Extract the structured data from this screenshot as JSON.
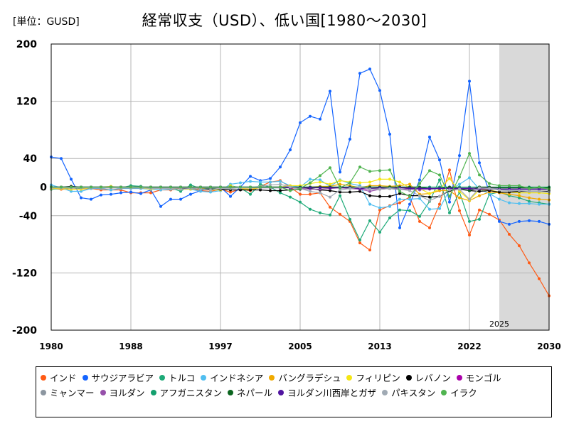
{
  "unit_label": "[単位：GUSD]",
  "title": "経常収支（USD）、低い国[1980～2030]",
  "forecast_label": "2025",
  "chart_data": {
    "type": "line",
    "ylim": [
      -200,
      200
    ],
    "yticks": [
      200,
      120,
      40,
      0,
      -40,
      -120,
      -200
    ],
    "xlim": [
      1980,
      2030
    ],
    "xticks": [
      1980,
      1988,
      1997,
      2005,
      2013,
      2022,
      2030
    ],
    "forecast_start": 2025,
    "grid": true,
    "legend_position": "bottom",
    "x": [
      1980,
      1981,
      1982,
      1983,
      1984,
      1985,
      1986,
      1987,
      1988,
      1989,
      1990,
      1991,
      1992,
      1993,
      1994,
      1995,
      1996,
      1997,
      1998,
      1999,
      2000,
      2001,
      2002,
      2003,
      2004,
      2005,
      2006,
      2007,
      2008,
      2009,
      2010,
      2011,
      2012,
      2013,
      2014,
      2015,
      2016,
      2017,
      2018,
      2019,
      2020,
      2021,
      2022,
      2023,
      2024,
      2025,
      2026,
      2027,
      2028,
      2029,
      2030
    ],
    "series": [
      {
        "name": "インド",
        "color": "#ff5a14",
        "values": [
          -2,
          -3,
          -3,
          -3,
          -2,
          -4,
          -4,
          -4,
          -8,
          -8,
          -8,
          -4,
          -4,
          -2,
          -2,
          -5,
          -6,
          -3,
          -7,
          -3,
          -5,
          1,
          7,
          9,
          0,
          -10,
          -10,
          -8,
          -28,
          -38,
          -48,
          -78,
          -88,
          -32,
          -26,
          -22,
          -14,
          -48,
          -57,
          -24,
          24,
          -33,
          -67,
          -32,
          -38,
          -46,
          -66,
          -82,
          -106,
          -128,
          -152
        ]
      },
      {
        "name": "サウジアラビア",
        "color": "#1464ff",
        "values": [
          42,
          40,
          11,
          -15,
          -17,
          -11,
          -10,
          -8,
          -7,
          -9,
          -4,
          -27,
          -17,
          -17,
          -10,
          -5,
          0,
          0,
          -13,
          0,
          15,
          9,
          12,
          28,
          52,
          90,
          99,
          95,
          134,
          21,
          67,
          159,
          165,
          135,
          74,
          -57,
          -24,
          10,
          70,
          38,
          -21,
          44,
          148,
          34,
          -7,
          -48,
          -52,
          -48,
          -47,
          -48,
          -52
        ]
      },
      {
        "name": "トルコ",
        "color": "#1eaa78",
        "values": [
          -3,
          -2,
          -1,
          -2,
          -2,
          -1,
          -1,
          -1,
          2,
          1,
          -2,
          0,
          -1,
          -6,
          3,
          -2,
          -2,
          -3,
          2,
          -1,
          -10,
          4,
          0,
          -8,
          -14,
          -21,
          -31,
          -36,
          -39,
          -12,
          -45,
          -74,
          -47,
          -63,
          -43,
          -32,
          -33,
          -41,
          -20,
          10,
          -36,
          -7,
          -48,
          -45,
          -10,
          -7,
          -12,
          -15,
          -20,
          -22,
          -24
        ]
      },
      {
        "name": "インドネシア",
        "color": "#50bef0",
        "values": [
          3,
          -1,
          -6,
          -6,
          -2,
          -2,
          -4,
          -2,
          -2,
          -2,
          -3,
          -4,
          -3,
          -2,
          -3,
          -6,
          -7,
          -5,
          4,
          6,
          8,
          7,
          7,
          8,
          2,
          0,
          11,
          10,
          1,
          10,
          5,
          2,
          -24,
          -29,
          -27,
          -17,
          -17,
          -16,
          -31,
          -30,
          -4,
          4,
          13,
          -3,
          -9,
          -17,
          -22,
          -23,
          -23,
          -24,
          -24
        ]
      },
      {
        "name": "バングラデシュ",
        "color": "#f0aa00",
        "values": [
          -1,
          -1,
          -1,
          -1,
          -1,
          -1,
          -1,
          -1,
          -1,
          -1,
          -1,
          -1,
          -1,
          -1,
          -1,
          -1,
          -1,
          -1,
          -1,
          -1,
          -1,
          -1,
          0,
          0,
          -1,
          -1,
          0,
          1,
          1,
          4,
          2,
          -1,
          2,
          2,
          1,
          2,
          4,
          -10,
          -9,
          -5,
          -5,
          -15,
          -19,
          -12,
          -7,
          -8,
          -10,
          -12,
          -15,
          -17,
          -18
        ]
      },
      {
        "name": "フィリピン",
        "color": "#f5e614",
        "values": [
          -2,
          -2,
          -3,
          -3,
          -1,
          0,
          1,
          -1,
          -1,
          -1,
          -3,
          -1,
          -1,
          -3,
          -3,
          -2,
          -4,
          -4,
          2,
          -2,
          -3,
          -1,
          0,
          0,
          2,
          2,
          5,
          7,
          4,
          9,
          7,
          6,
          7,
          11,
          11,
          7,
          -1,
          -2,
          -9,
          -3,
          12,
          -6,
          -18,
          -4,
          -4,
          -7,
          -7,
          -8,
          -8,
          -8,
          -9
        ]
      },
      {
        "name": "レバノン",
        "color": "#000000",
        "values": [
          0,
          0,
          1,
          0,
          0,
          0,
          0,
          0,
          0,
          0,
          -1,
          -1,
          -1,
          -1,
          -2,
          -3,
          -3,
          -3,
          -4,
          -4,
          -4,
          -4,
          -5,
          -5,
          -4,
          -3,
          -2,
          -4,
          -5,
          -7,
          -7,
          -6,
          -12,
          -13,
          -13,
          -9,
          -12,
          -12,
          -14,
          -13,
          -5,
          -3,
          -5,
          -6,
          -5,
          -7,
          -7,
          -6,
          -6,
          -6,
          -6
        ]
      },
      {
        "name": "モンゴル",
        "color": "#aa00aa",
        "values": [
          -1,
          -1,
          -1,
          -1,
          -1,
          -1,
          -1,
          -1,
          -1,
          -1,
          -1,
          -1,
          -1,
          -1,
          -1,
          -1,
          -1,
          -1,
          -1,
          -1,
          -1,
          -1,
          -1,
          -1,
          -1,
          -1,
          0,
          0,
          -1,
          -1,
          -1,
          -2,
          -3,
          -3,
          -2,
          -1,
          -1,
          -1,
          -2,
          -2,
          -1,
          -2,
          -2,
          0,
          -1,
          -1,
          -1,
          -1,
          -1,
          -1,
          -1
        ]
      },
      {
        "name": "ミャンマー",
        "color": "#8c96a0",
        "values": [
          -1,
          -1,
          -1,
          -1,
          -1,
          -1,
          -1,
          -1,
          -1,
          -1,
          -1,
          -1,
          -1,
          -1,
          -1,
          -1,
          -1,
          -1,
          -1,
          -1,
          -1,
          -1,
          -1,
          -1,
          -1,
          -1,
          0,
          0,
          -1,
          -1,
          -1,
          -1,
          -2,
          -2,
          -2,
          -4,
          -2,
          -1,
          -2,
          -1,
          -1,
          -1,
          -1,
          -2,
          -2,
          -2,
          -2,
          -2,
          -2,
          -2,
          -2
        ]
      },
      {
        "name": "ヨルダン",
        "color": "#9650aa",
        "values": [
          0,
          0,
          0,
          0,
          0,
          0,
          0,
          0,
          0,
          0,
          0,
          0,
          0,
          0,
          0,
          0,
          0,
          0,
          0,
          0,
          0,
          0,
          0,
          0,
          -1,
          -2,
          -3,
          -3,
          -2,
          -1,
          -2,
          -3,
          -6,
          -3,
          -2,
          -3,
          -3,
          -4,
          -3,
          -2,
          -2,
          -3,
          -4,
          -2,
          -3,
          -3,
          -3,
          -3,
          -3,
          -3,
          -3
        ]
      },
      {
        "name": "アフガニスタン",
        "color": "#14a06e",
        "values": [
          0,
          0,
          0,
          0,
          0,
          0,
          0,
          0,
          0,
          0,
          0,
          0,
          0,
          0,
          0,
          0,
          0,
          0,
          0,
          0,
          0,
          0,
          0,
          0,
          0,
          0,
          0,
          0,
          0,
          0,
          0,
          0,
          0,
          0,
          0,
          0,
          0,
          0,
          0,
          0,
          0,
          0,
          0,
          0,
          0,
          0,
          0,
          0,
          0,
          0,
          0
        ]
      },
      {
        "name": "ネパール",
        "color": "#0a641e",
        "values": [
          0,
          0,
          0,
          0,
          0,
          0,
          0,
          0,
          0,
          0,
          0,
          0,
          0,
          0,
          0,
          0,
          0,
          0,
          0,
          0,
          0,
          0,
          0,
          0,
          0,
          0,
          0,
          0,
          0,
          0,
          0,
          0,
          0,
          0,
          0,
          0,
          0,
          0,
          -2,
          -2,
          0,
          -2,
          -5,
          0,
          0,
          -1,
          -1,
          -1,
          -1,
          -1,
          -1
        ]
      },
      {
        "name": "ヨルダン川西岸とガザ",
        "color": "#5014a0",
        "values": [
          0,
          0,
          0,
          0,
          0,
          0,
          0,
          0,
          0,
          0,
          0,
          0,
          0,
          0,
          0,
          0,
          0,
          0,
          0,
          0,
          0,
          0,
          0,
          0,
          -1,
          -1,
          -1,
          -1,
          -1,
          -1,
          -1,
          -2,
          -2,
          -1,
          -2,
          -1,
          -2,
          -2,
          -2,
          -2,
          -2,
          -2,
          -2,
          -3,
          -3,
          -3,
          -3,
          -3,
          -3,
          -3,
          -3
        ]
      },
      {
        "name": "パキスタン",
        "color": "#a0aab4",
        "values": [
          -1,
          -1,
          -1,
          -1,
          -1,
          -1,
          -1,
          -1,
          -1,
          -1,
          -2,
          -2,
          -2,
          -3,
          -2,
          -3,
          -4,
          -2,
          -2,
          -1,
          0,
          1,
          3,
          4,
          0,
          -2,
          -6,
          -8,
          -14,
          -4,
          -2,
          0,
          -3,
          -3,
          -2,
          -3,
          -5,
          -12,
          -19,
          -13,
          -4,
          -3,
          -17,
          -1,
          -2,
          -4,
          -5,
          -5,
          -6,
          -6,
          -7
        ]
      },
      {
        "name": "イラク",
        "color": "#50b450",
        "values": [
          0,
          0,
          0,
          0,
          0,
          0,
          0,
          0,
          0,
          0,
          0,
          0,
          0,
          0,
          0,
          0,
          0,
          0,
          0,
          0,
          0,
          0,
          0,
          0,
          -5,
          -2,
          6,
          16,
          27,
          -1,
          6,
          28,
          22,
          23,
          24,
          -6,
          -13,
          5,
          23,
          17,
          -13,
          14,
          47,
          17,
          5,
          2,
          2,
          2,
          -2,
          0,
          -3
        ]
      }
    ]
  }
}
